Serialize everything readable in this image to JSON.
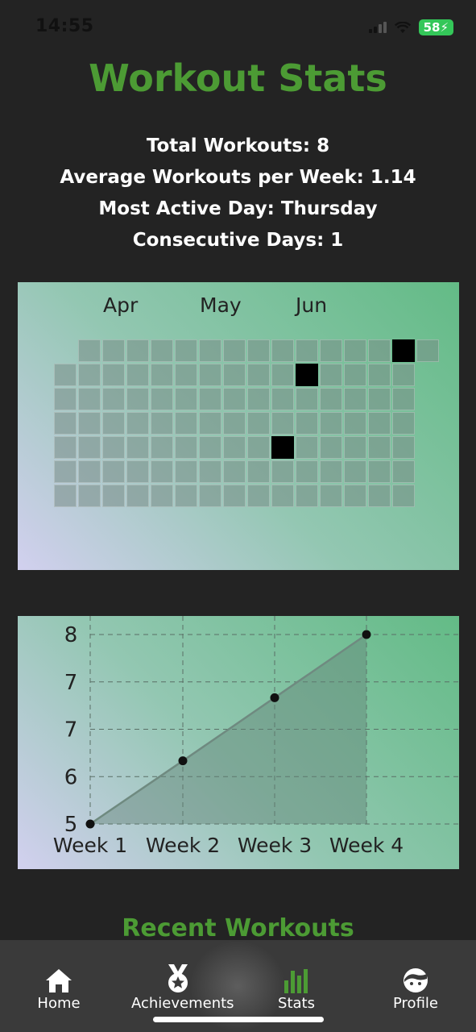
{
  "status_bar": {
    "time": "14:55",
    "battery": "58"
  },
  "header": {
    "title": "Workout Stats"
  },
  "stats": {
    "total": "Total Workouts: 8",
    "avg": "Average Workouts per Week: 1.14",
    "most_active": "Most Active Day: Thursday",
    "consecutive": "Consecutive Days: 1"
  },
  "calendar": {
    "months": [
      "Apr",
      "May",
      "Jun"
    ],
    "active_days": [
      {
        "week": 14,
        "day": 0
      },
      {
        "week": 10,
        "day": 1
      },
      {
        "week": 9,
        "day": 4
      }
    ]
  },
  "chart_data": {
    "type": "line",
    "categories": [
      "Week 1",
      "Week 2",
      "Week 3",
      "Week 4"
    ],
    "values": [
      5,
      6,
      7,
      8
    ],
    "ytick_labels": [
      "5",
      "6",
      "7",
      "7",
      "8"
    ],
    "ylim": [
      5,
      8
    ],
    "grid": true,
    "area_fill": true
  },
  "recent": {
    "title": "Recent Workouts"
  },
  "tabs": [
    {
      "label": "Home",
      "icon": "home-icon"
    },
    {
      "label": "Achievements",
      "icon": "medal-icon"
    },
    {
      "label": "Stats",
      "icon": "bar-chart-icon",
      "selected": true
    },
    {
      "label": "Profile",
      "icon": "profile-face-icon"
    }
  ],
  "colors": {
    "accent": "#4c9b34",
    "tab_bar": "#3a3a3a",
    "background": "#232323"
  }
}
